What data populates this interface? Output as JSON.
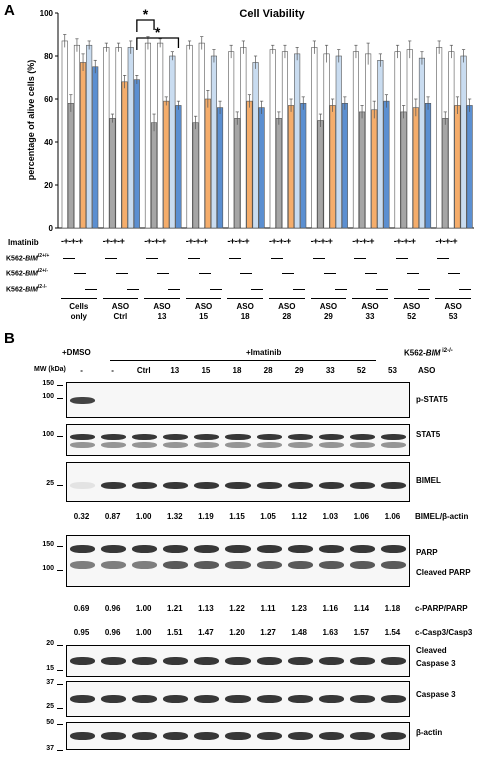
{
  "panelA": {
    "letter": "A",
    "chart_data": {
      "type": "bar",
      "title": "Cell Viability",
      "ylabel": "percentage of alive cells (%)",
      "ylim": [
        0,
        100
      ],
      "yticks": [
        0,
        20,
        40,
        60,
        80,
        100
      ],
      "groups": [
        "Cells only",
        "ASO Ctrl",
        "ASO 13",
        "ASO 15",
        "ASO 18",
        "ASO 28",
        "ASO 29",
        "ASO 33",
        "ASO 52",
        "ASO 53"
      ],
      "series": [
        {
          "values": [
            87,
            84,
            86,
            85,
            82,
            83,
            84,
            82,
            82,
            84
          ],
          "errors": [
            3,
            2,
            3,
            2,
            3,
            2,
            3,
            3,
            3,
            3
          ],
          "color": "#ffffff"
        },
        {
          "values": [
            58,
            51,
            49,
            49,
            51,
            51,
            50,
            54,
            54,
            51
          ],
          "errors": [
            4,
            2,
            4,
            3,
            3,
            3,
            3,
            3,
            3,
            3
          ],
          "color": "#a6a6a6"
        },
        {
          "values": [
            85,
            84,
            86,
            86,
            84,
            82,
            81,
            81,
            83,
            82
          ],
          "errors": [
            3,
            2,
            2,
            3,
            3,
            3,
            4,
            5,
            4,
            3
          ],
          "color": "#ffffff"
        },
        {
          "values": [
            77,
            68,
            59,
            60,
            59,
            57,
            57,
            55,
            56,
            57
          ],
          "errors": [
            4,
            3,
            2,
            4,
            3,
            3,
            3,
            4,
            4,
            4
          ],
          "color": "#f5ad6b"
        },
        {
          "values": [
            85,
            84,
            80,
            80,
            77,
            81,
            80,
            78,
            79,
            80
          ],
          "errors": [
            2,
            3,
            2,
            3,
            3,
            3,
            3,
            3,
            3,
            3
          ],
          "color": "#c9dcf0"
        },
        {
          "values": [
            75,
            69,
            57,
            56,
            56,
            58,
            58,
            59,
            58,
            57
          ],
          "errors": [
            3,
            2,
            2,
            3,
            3,
            3,
            3,
            3,
            3,
            3
          ],
          "color": "#5b8fd1"
        }
      ],
      "significance": [
        {
          "label": "*"
        },
        {
          "label": "*"
        }
      ]
    },
    "rows": {
      "imatinib_label": "Imatinib",
      "imatinib_pattern": "-+-+-+",
      "bim_wt_label_main": "K562-",
      "bim_wt_label_ital": "BIM",
      "bim_wt_sup": "i2+/+",
      "bim_het_label_main": "K562-",
      "bim_het_label_ital": "BIM",
      "bim_het_sup": "i2+/-",
      "bim_ko_label_main": "K562-",
      "bim_ko_label_ital": "BIM",
      "bim_ko_sup": "i2-/-"
    },
    "group_labels": [
      {
        "line1": "Cells",
        "line2": "only"
      },
      {
        "line1": "ASO",
        "line2": "Ctrl"
      },
      {
        "line1": "ASO",
        "line2": "13"
      },
      {
        "line1": "ASO",
        "line2": "15"
      },
      {
        "line1": "ASO",
        "line2": "18"
      },
      {
        "line1": "ASO",
        "line2": "28"
      },
      {
        "line1": "ASO",
        "line2": "29"
      },
      {
        "line1": "ASO",
        "line2": "33"
      },
      {
        "line1": "ASO",
        "line2": "52"
      },
      {
        "line1": "ASO",
        "line2": "53"
      }
    ]
  },
  "panelB": {
    "letter": "B",
    "dmso_label": "+DMSO",
    "imatinib_label": "+Imatinib",
    "k562_label": "K562-",
    "k562_ital": "BIM",
    "k562_sup": " i2-/-",
    "mw_label": "MW (kDa)",
    "aso_label": "ASO",
    "lanes": [
      "-",
      "-",
      "Ctrl",
      "13",
      "15",
      "18",
      "28",
      "29",
      "33",
      "52",
      "53"
    ],
    "blots": [
      {
        "name": "p-STAT5",
        "mw": [
          "150",
          "100"
        ]
      },
      {
        "name": "STAT5",
        "mw": [
          "100"
        ]
      },
      {
        "name": "BIMEL",
        "mw": [
          "25"
        ]
      },
      {
        "name": "PARP",
        "name2": "Cleaved PARP",
        "mw": [
          "150",
          "100"
        ]
      },
      {
        "name": "Cleaved",
        "name2": "Caspase 3",
        "mw": [
          "20",
          "15"
        ]
      },
      {
        "name": "Caspase 3",
        "mw": [
          "37",
          "25"
        ]
      },
      {
        "name": "β-actin",
        "mw": [
          "50",
          "37"
        ]
      }
    ],
    "bimel_ratio_label": "BIMEL/β-actin",
    "bimel_ratios": [
      "0.32",
      "0.87",
      "1.00",
      "1.32",
      "1.19",
      "1.15",
      "1.05",
      "1.12",
      "1.03",
      "1.06",
      "1.06"
    ],
    "parp_ratio_label": "c-PARP/PARP",
    "parp_ratios": [
      "0.69",
      "0.96",
      "1.00",
      "1.21",
      "1.13",
      "1.22",
      "1.11",
      "1.23",
      "1.16",
      "1.14",
      "1.18"
    ],
    "casp_ratio_label": "c-Casp3/Casp3",
    "casp_ratios": [
      "0.95",
      "0.96",
      "1.00",
      "1.51",
      "1.47",
      "1.20",
      "1.27",
      "1.48",
      "1.63",
      "1.57",
      "1.54"
    ]
  }
}
